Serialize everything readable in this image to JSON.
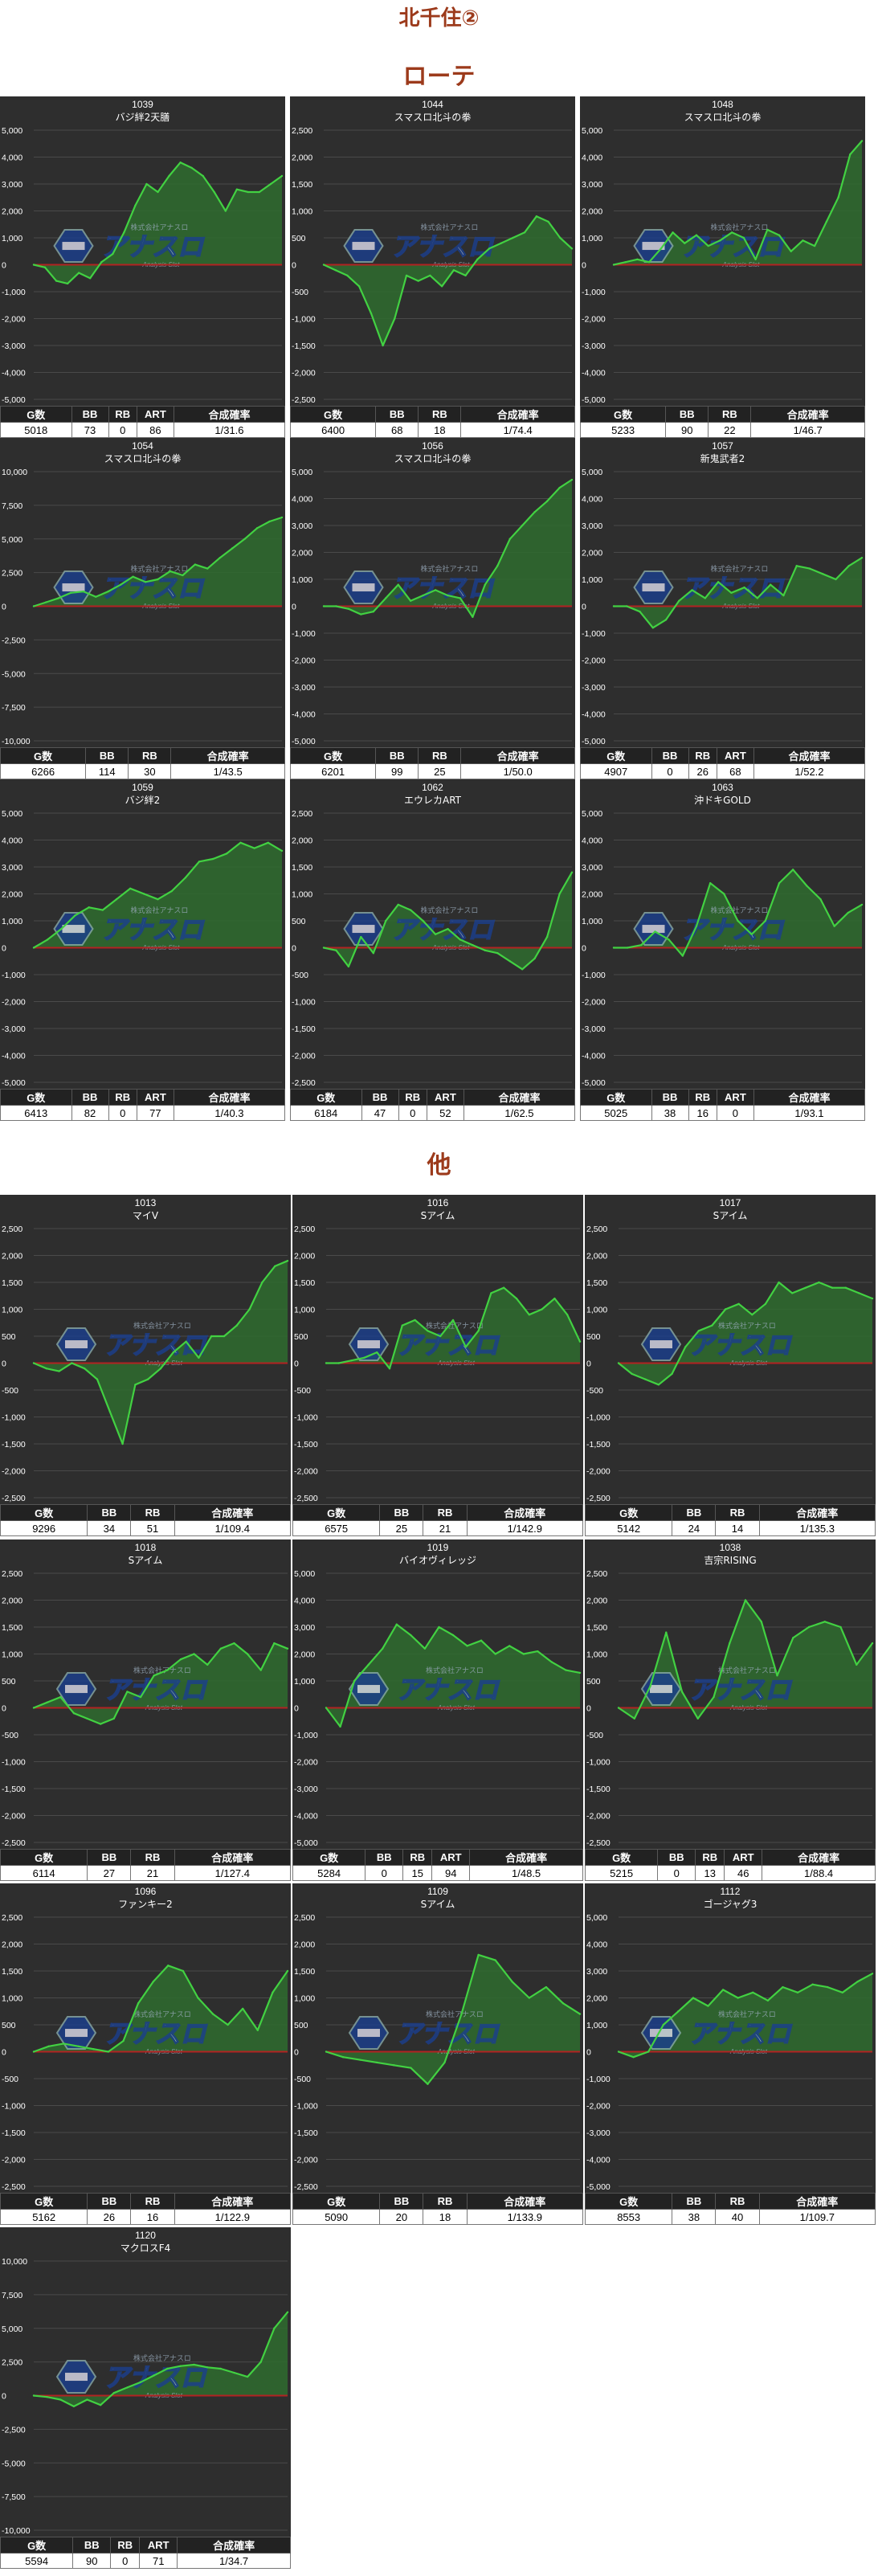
{
  "page_title": "北千住②",
  "sections": [
    {
      "label": "ローテ"
    },
    {
      "label": "他"
    }
  ],
  "watermark": {
    "main": "アナスロ",
    "sub": "Analysis Slot",
    "top": "株式会社アナスロ"
  },
  "colors": {
    "bg": "#2e2e2e",
    "grid": "#4a4a4a",
    "line": "#42d142",
    "fill": "#2e6b2e",
    "zero": "#b22222",
    "title": "#9c3a1b"
  },
  "chart_data": [
    {
      "type": "area",
      "id": "1039",
      "name": "バジ絆2天膳",
      "ylim": [
        -5000,
        5000
      ],
      "yticks": [
        5000,
        4000,
        3000,
        2000,
        1000,
        0,
        -1000,
        -2000,
        -3000,
        -4000,
        -5000
      ],
      "values": [
        0,
        -100,
        -600,
        -700,
        -300,
        -500,
        100,
        400,
        1200,
        2200,
        3000,
        2700,
        3300,
        3800,
        3600,
        3300,
        2700,
        2000,
        2800,
        2700,
        2700,
        3000,
        3300
      ],
      "stats": {
        "headers": [
          "G数",
          "BB",
          "RB",
          "ART",
          "合成確率"
        ],
        "values": [
          "5018",
          "73",
          "0",
          "86",
          "1/31.6"
        ]
      }
    },
    {
      "type": "area",
      "id": "1044",
      "name": "スマスロ北斗の拳",
      "ylim": [
        -2500,
        2500
      ],
      "yticks": [
        2500,
        2000,
        1500,
        1000,
        500,
        0,
        -500,
        -1000,
        -1500,
        -2000,
        -2500
      ],
      "values": [
        0,
        -100,
        -200,
        -400,
        -900,
        -1500,
        -1000,
        -200,
        -300,
        -200,
        -400,
        -100,
        -200,
        100,
        300,
        400,
        500,
        600,
        900,
        800,
        500,
        300
      ],
      "stats": {
        "headers": [
          "G数",
          "BB",
          "RB",
          "合成確率"
        ],
        "values": [
          "6400",
          "68",
          "18",
          "1/74.4"
        ]
      }
    },
    {
      "type": "area",
      "id": "1048",
      "name": "スマスロ北斗の拳",
      "ylim": [
        -5000,
        5000
      ],
      "yticks": [
        5000,
        4000,
        3000,
        2000,
        1000,
        0,
        -1000,
        -2000,
        -3000,
        -4000,
        -5000
      ],
      "values": [
        0,
        100,
        200,
        100,
        600,
        1200,
        800,
        1100,
        700,
        900,
        1200,
        1000,
        200,
        1300,
        1100,
        500,
        900,
        700,
        1600,
        2500,
        4100,
        4600
      ],
      "stats": {
        "headers": [
          "G数",
          "BB",
          "RB",
          "合成確率"
        ],
        "values": [
          "5233",
          "90",
          "22",
          "1/46.7"
        ]
      }
    },
    {
      "type": "area",
      "id": "1054",
      "name": "スマスロ北斗の拳",
      "ylim": [
        -10000,
        10000
      ],
      "yticks": [
        10000,
        7500,
        5000,
        2500,
        0,
        -2500,
        -5000,
        -7500,
        -10000
      ],
      "values": [
        0,
        300,
        600,
        1000,
        1100,
        700,
        1100,
        1600,
        2200,
        1800,
        2000,
        2600,
        2300,
        3100,
        2800,
        3600,
        4300,
        5000,
        5800,
        6300,
        6600
      ],
      "stats": {
        "headers": [
          "G数",
          "BB",
          "RB",
          "合成確率"
        ],
        "values": [
          "6266",
          "114",
          "30",
          "1/43.5"
        ]
      }
    },
    {
      "type": "area",
      "id": "1056",
      "name": "スマスロ北斗の拳",
      "ylim": [
        -5000,
        5000
      ],
      "yticks": [
        5000,
        4000,
        3000,
        2000,
        1000,
        0,
        -1000,
        -2000,
        -3000,
        -4000,
        -5000
      ],
      "values": [
        0,
        0,
        -100,
        -300,
        -200,
        300,
        800,
        200,
        400,
        600,
        400,
        300,
        -400,
        800,
        1500,
        2500,
        3000,
        3500,
        3900,
        4400,
        4700
      ],
      "stats": {
        "headers": [
          "G数",
          "BB",
          "RB",
          "合成確率"
        ],
        "values": [
          "6201",
          "99",
          "25",
          "1/50.0"
        ]
      }
    },
    {
      "type": "area",
      "id": "1057",
      "name": "新鬼武者2",
      "ylim": [
        -5000,
        5000
      ],
      "yticks": [
        5000,
        4000,
        3000,
        2000,
        1000,
        0,
        -1000,
        -2000,
        -3000,
        -4000,
        -5000
      ],
      "values": [
        0,
        0,
        -200,
        -800,
        -500,
        200,
        600,
        300,
        900,
        500,
        700,
        300,
        800,
        400,
        1500,
        1400,
        1200,
        1000,
        1500,
        1800
      ],
      "stats": {
        "headers": [
          "G数",
          "BB",
          "RB",
          "ART",
          "合成確率"
        ],
        "values": [
          "4907",
          "0",
          "26",
          "68",
          "1/52.2"
        ]
      }
    },
    {
      "type": "area",
      "id": "1059",
      "name": "バジ絆2",
      "ylim": [
        -5000,
        5000
      ],
      "yticks": [
        5000,
        4000,
        3000,
        2000,
        1000,
        0,
        -1000,
        -2000,
        -3000,
        -4000,
        -5000
      ],
      "values": [
        0,
        300,
        700,
        1200,
        1500,
        1400,
        1800,
        2200,
        2000,
        1800,
        2100,
        2600,
        3200,
        3300,
        3500,
        3900,
        3700,
        3900,
        3600
      ],
      "stats": {
        "headers": [
          "G数",
          "BB",
          "RB",
          "ART",
          "合成確率"
        ],
        "values": [
          "6413",
          "82",
          "0",
          "77",
          "1/40.3"
        ]
      }
    },
    {
      "type": "area",
      "id": "1062",
      "name": "エウレカART",
      "ylim": [
        -2500,
        2500
      ],
      "yticks": [
        2500,
        2000,
        1500,
        1000,
        500,
        0,
        -500,
        -1000,
        -1500,
        -2000,
        -2500
      ],
      "values": [
        0,
        -50,
        -350,
        200,
        -100,
        500,
        800,
        700,
        500,
        250,
        350,
        150,
        50,
        -50,
        -100,
        -250,
        -400,
        -200,
        200,
        1000,
        1400
      ],
      "stats": {
        "headers": [
          "G数",
          "BB",
          "RB",
          "ART",
          "合成確率"
        ],
        "values": [
          "6184",
          "47",
          "0",
          "52",
          "1/62.5"
        ]
      }
    },
    {
      "type": "area",
      "id": "1063",
      "name": "沖ドキGOLD",
      "ylim": [
        -5000,
        5000
      ],
      "yticks": [
        5000,
        4000,
        3000,
        2000,
        1000,
        0,
        -1000,
        -2000,
        -3000,
        -4000,
        -5000
      ],
      "values": [
        0,
        0,
        100,
        600,
        300,
        -300,
        800,
        2400,
        2000,
        1000,
        500,
        1000,
        2400,
        2900,
        2300,
        1800,
        800,
        1300,
        1600
      ],
      "stats": {
        "headers": [
          "G数",
          "BB",
          "RB",
          "ART",
          "合成確率"
        ],
        "values": [
          "5025",
          "38",
          "16",
          "0",
          "1/93.1"
        ]
      }
    },
    {
      "type": "area",
      "id": "1013",
      "name": "マイV",
      "ylim": [
        -2500,
        2500
      ],
      "yticks": [
        2500,
        2000,
        1500,
        1000,
        500,
        0,
        -500,
        -1000,
        -1500,
        -2000,
        -2500
      ],
      "values": [
        0,
        -100,
        -150,
        0,
        -100,
        -300,
        -900,
        -1500,
        -400,
        -300,
        -100,
        200,
        400,
        100,
        500,
        500,
        700,
        1000,
        1500,
        1800,
        1900
      ],
      "stats": {
        "headers": [
          "G数",
          "BB",
          "RB",
          "合成確率"
        ],
        "values": [
          "9296",
          "34",
          "51",
          "1/109.4"
        ]
      }
    },
    {
      "type": "area",
      "id": "1016",
      "name": "Sアイム",
      "ylim": [
        -2500,
        2500
      ],
      "yticks": [
        2500,
        2000,
        1500,
        1000,
        500,
        0,
        -500,
        -1000,
        -1500,
        -2000,
        -2500
      ],
      "values": [
        0,
        0,
        50,
        100,
        200,
        -100,
        700,
        800,
        600,
        500,
        800,
        300,
        600,
        1300,
        1400,
        1200,
        900,
        1000,
        1200,
        900,
        400
      ],
      "stats": {
        "headers": [
          "G数",
          "BB",
          "RB",
          "合成確率"
        ],
        "values": [
          "6575",
          "25",
          "21",
          "1/142.9"
        ]
      }
    },
    {
      "type": "area",
      "id": "1017",
      "name": "Sアイム",
      "ylim": [
        -2500,
        2500
      ],
      "yticks": [
        2500,
        2000,
        1500,
        1000,
        500,
        0,
        -500,
        -1000,
        -1500,
        -2000,
        -2500
      ],
      "values": [
        0,
        -200,
        -300,
        -400,
        -200,
        300,
        600,
        700,
        1000,
        1100,
        900,
        1100,
        1500,
        1300,
        1400,
        1500,
        1400,
        1400,
        1300,
        1200
      ],
      "stats": {
        "headers": [
          "G数",
          "BB",
          "RB",
          "合成確率"
        ],
        "values": [
          "5142",
          "24",
          "14",
          "1/135.3"
        ]
      }
    },
    {
      "type": "area",
      "id": "1018",
      "name": "Sアイム",
      "ylim": [
        -2500,
        2500
      ],
      "yticks": [
        2500,
        2000,
        1500,
        1000,
        500,
        0,
        -500,
        -1000,
        -1500,
        -2000,
        -2500
      ],
      "values": [
        0,
        100,
        200,
        -100,
        -200,
        -300,
        -200,
        300,
        200,
        600,
        700,
        900,
        1000,
        800,
        1100,
        1200,
        1000,
        700,
        1200,
        1100
      ],
      "stats": {
        "headers": [
          "G数",
          "BB",
          "RB",
          "合成確率"
        ],
        "values": [
          "6114",
          "27",
          "21",
          "1/127.4"
        ]
      }
    },
    {
      "type": "area",
      "id": "1019",
      "name": "バイオヴィレッジ",
      "ylim": [
        -5000,
        5000
      ],
      "yticks": [
        5000,
        4000,
        3000,
        2000,
        1000,
        0,
        -1000,
        -2000,
        -3000,
        -4000,
        -5000
      ],
      "values": [
        0,
        -700,
        1000,
        1600,
        2200,
        3100,
        2700,
        2200,
        3000,
        2700,
        2300,
        2500,
        2000,
        2300,
        2000,
        2100,
        1700,
        1400,
        1300
      ],
      "stats": {
        "headers": [
          "G数",
          "BB",
          "RB",
          "ART",
          "合成確率"
        ],
        "values": [
          "5284",
          "0",
          "15",
          "94",
          "1/48.5"
        ]
      }
    },
    {
      "type": "area",
      "id": "1038",
      "name": "吉宗RISING",
      "ylim": [
        -2500,
        2500
      ],
      "yticks": [
        2500,
        2000,
        1500,
        1000,
        500,
        0,
        -500,
        -1000,
        -1500,
        -2000,
        -2500
      ],
      "values": [
        0,
        -200,
        400,
        1400,
        300,
        -200,
        200,
        1200,
        2000,
        1600,
        600,
        1300,
        1500,
        1600,
        1500,
        800,
        1200
      ],
      "stats": {
        "headers": [
          "G数",
          "BB",
          "RB",
          "ART",
          "合成確率"
        ],
        "values": [
          "5215",
          "0",
          "13",
          "46",
          "1/88.4"
        ]
      }
    },
    {
      "type": "area",
      "id": "1096",
      "name": "ファンキー2",
      "ylim": [
        -2500,
        2500
      ],
      "yticks": [
        2500,
        2000,
        1500,
        1000,
        500,
        0,
        -500,
        -1000,
        -1500,
        -2000,
        -2500
      ],
      "values": [
        0,
        100,
        150,
        100,
        50,
        0,
        200,
        900,
        1300,
        1600,
        1500,
        1000,
        700,
        500,
        800,
        400,
        1100,
        1500
      ],
      "stats": {
        "headers": [
          "G数",
          "BB",
          "RB",
          "合成確率"
        ],
        "values": [
          "5162",
          "26",
          "16",
          "1/122.9"
        ]
      }
    },
    {
      "type": "area",
      "id": "1109",
      "name": "Sアイム",
      "ylim": [
        -2500,
        2500
      ],
      "yticks": [
        2500,
        2000,
        1500,
        1000,
        500,
        0,
        -500,
        -1000,
        -1500,
        -2000,
        -2500
      ],
      "values": [
        0,
        -100,
        -150,
        -200,
        -250,
        -300,
        -600,
        -200,
        700,
        1800,
        1700,
        1300,
        1000,
        1200,
        900,
        700
      ],
      "stats": {
        "headers": [
          "G数",
          "BB",
          "RB",
          "合成確率"
        ],
        "values": [
          "5090",
          "20",
          "18",
          "1/133.9"
        ]
      }
    },
    {
      "type": "area",
      "id": "1112",
      "name": "ゴージャグ3",
      "ylim": [
        -5000,
        5000
      ],
      "yticks": [
        5000,
        4000,
        3000,
        2000,
        1000,
        0,
        -1000,
        -2000,
        -3000,
        -4000,
        -5000
      ],
      "values": [
        0,
        -200,
        0,
        1000,
        1500,
        2000,
        1700,
        2300,
        2000,
        2200,
        1900,
        2400,
        2200,
        2500,
        2400,
        2200,
        2600,
        2900
      ],
      "stats": {
        "headers": [
          "G数",
          "BB",
          "RB",
          "合成確率"
        ],
        "values": [
          "8553",
          "38",
          "40",
          "1/109.7"
        ]
      }
    },
    {
      "type": "area",
      "id": "1120",
      "name": "マクロスF4",
      "ylim": [
        -10000,
        10000
      ],
      "yticks": [
        10000,
        7500,
        5000,
        2500,
        0,
        -2500,
        -5000,
        -7500,
        -10000
      ],
      "values": [
        0,
        -100,
        -300,
        -800,
        -300,
        -700,
        200,
        600,
        1000,
        1500,
        2000,
        2200,
        2300,
        2100,
        2000,
        1700,
        1400,
        2500,
        5000,
        6200
      ],
      "stats": {
        "headers": [
          "G数",
          "BB",
          "RB",
          "ART",
          "合成確率"
        ],
        "values": [
          "5594",
          "90",
          "0",
          "71",
          "1/34.7"
        ]
      }
    }
  ]
}
